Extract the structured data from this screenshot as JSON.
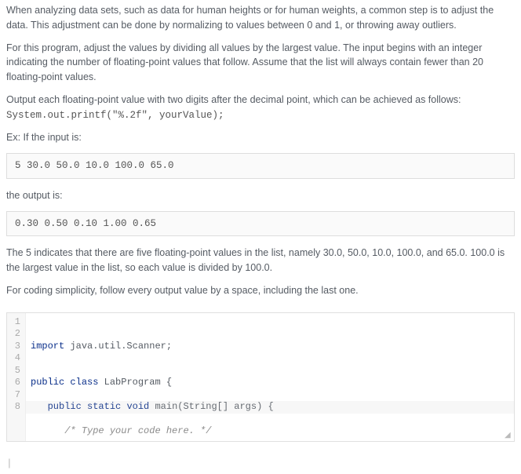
{
  "paragraphs": {
    "p1": "When analyzing data sets, such as data for human heights or for human weights, a common step is to adjust the data. This adjustment can be done by normalizing to values between 0 and 1, or throwing away outliers.",
    "p2": "For this program, adjust the values by dividing all values by the largest value. The input begins with an integer indicating the number of floating-point values that follow. Assume that the list will always contain fewer than 20 floating-point values.",
    "p3": "Output each floating-point value with two digits after the decimal point, which can be achieved as follows:",
    "p3_code": "System.out.printf(\"%.2f\", yourValue);",
    "p4": "Ex: If the input is:",
    "input_box": "5 30.0 50.0 10.0 100.0 65.0",
    "p5": "the output is:",
    "output_box": "0.30 0.50 0.10 1.00 0.65",
    "p6": "The 5 indicates that there are five floating-point values in the list, namely 30.0, 50.0, 10.0, 100.0, and 65.0. 100.0 is the largest value in the list, so each value is divided by 100.0.",
    "p7": "For coding simplicity, follow every output value by a space, including the last one."
  },
  "editor": {
    "line_numbers": [
      "1",
      "2",
      "3",
      "4",
      "5",
      "6",
      "7",
      "8"
    ],
    "lines": {
      "l1_kw": "import",
      "l1_rest": " java.util.Scanner;",
      "l2": "",
      "l3_kw1": "public",
      "l3_kw2": " class",
      "l3_rest": " LabProgram {",
      "l4_pre": "   ",
      "l4_kw1": "public",
      "l4_kw2": " static",
      "l4_kw3": " void",
      "l4_rest": " main(String[] args) {",
      "l5_pre": "      ",
      "l5_cm": "/* Type your code here. */",
      "l6": "   }",
      "l7": "}",
      "l8": ""
    }
  },
  "bottom_caret": "|"
}
